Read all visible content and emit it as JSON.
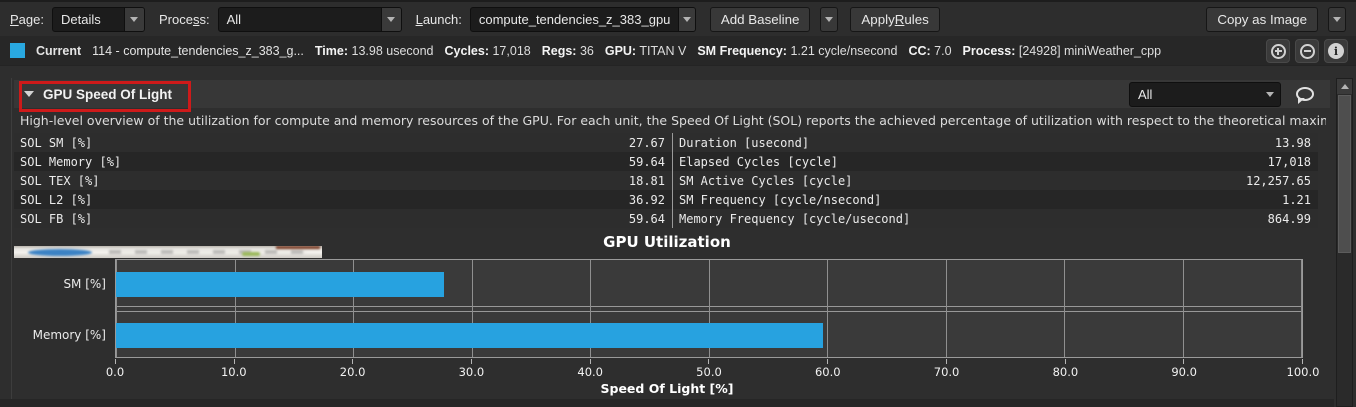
{
  "toolbar": {
    "page": {
      "pre": "",
      "u": "P",
      "post": "age:"
    },
    "page_value": "Details",
    "process": {
      "pre": "Proce",
      "u": "s",
      "post": "s:"
    },
    "process_value": "All",
    "launch": {
      "pre": "",
      "u": "L",
      "post": "aunch:"
    },
    "launch_value": "compute_tendencies_z_383_gpu",
    "add_baseline_label": "Add Baseline",
    "apply_rules": {
      "pre": "Apply ",
      "u": "R",
      "post": "ules"
    },
    "copy_as_image_label": "Copy as Image"
  },
  "current": {
    "swatch_color": "#29a8e0",
    "label": "Current",
    "kernel_name": "114 - compute_tendencies_z_383_g...",
    "metrics": [
      {
        "label": "Time:",
        "value": "13.98 usecond"
      },
      {
        "label": "Cycles:",
        "value": "17,018"
      },
      {
        "label": "Regs:",
        "value": "36"
      },
      {
        "label": "GPU:",
        "value": "TITAN V"
      },
      {
        "label": "SM Frequency:",
        "value": "1.21 cycle/nsecond"
      },
      {
        "label": "CC:",
        "value": "7.0"
      },
      {
        "label": "Process:",
        "value": "[24928] miniWeather_cpp"
      }
    ],
    "icons": [
      "circle-plus",
      "circle-minus",
      "circle-info"
    ]
  },
  "section": {
    "title": "GPU Speed Of Light",
    "filter_value": "All",
    "annotation_color": "#ce1a1a",
    "description": "High-level overview of the utilization for compute and memory resources of the GPU. For each unit, the Speed Of Light (SOL) reports the achieved percentage of utilization with respect to the theoretical maximum.",
    "metrics_left": [
      {
        "name": "SOL SM [%]",
        "value": "27.67"
      },
      {
        "name": "SOL Memory [%]",
        "value": "59.64"
      },
      {
        "name": "SOL TEX [%]",
        "value": "18.81"
      },
      {
        "name": "SOL L2 [%]",
        "value": "36.92"
      },
      {
        "name": "SOL FB [%]",
        "value": "59.64"
      }
    ],
    "metrics_right": [
      {
        "name": "Duration [usecond]",
        "value": "13.98"
      },
      {
        "name": "Elapsed Cycles [cycle]",
        "value": "17,018"
      },
      {
        "name": "SM Active Cycles [cycle]",
        "value": "12,257.65"
      },
      {
        "name": "SM Frequency [cycle/nsecond]",
        "value": "1.21"
      },
      {
        "name": "Memory Frequency [cycle/usecond]",
        "value": "864.99"
      }
    ]
  },
  "chart_data": {
    "type": "bar",
    "orientation": "horizontal",
    "title": "GPU Utilization",
    "categories": [
      "SM [%]",
      "Memory [%]"
    ],
    "values": [
      27.67,
      59.64
    ],
    "xlabel": "Speed Of Light [%]",
    "xlim": [
      0,
      100
    ],
    "xtick_labels": [
      "0.0",
      "10.0",
      "20.0",
      "30.0",
      "40.0",
      "50.0",
      "60.0",
      "70.0",
      "80.0",
      "90.0",
      "100.0"
    ],
    "bar_color": "#27a2e0",
    "grid": true,
    "legend": false
  },
  "colors": {
    "background": "#2e2e2e",
    "accent_blue": "#29a8e0",
    "annotation_red": "#ce1a1a",
    "bar_blue": "#27a2e0"
  }
}
